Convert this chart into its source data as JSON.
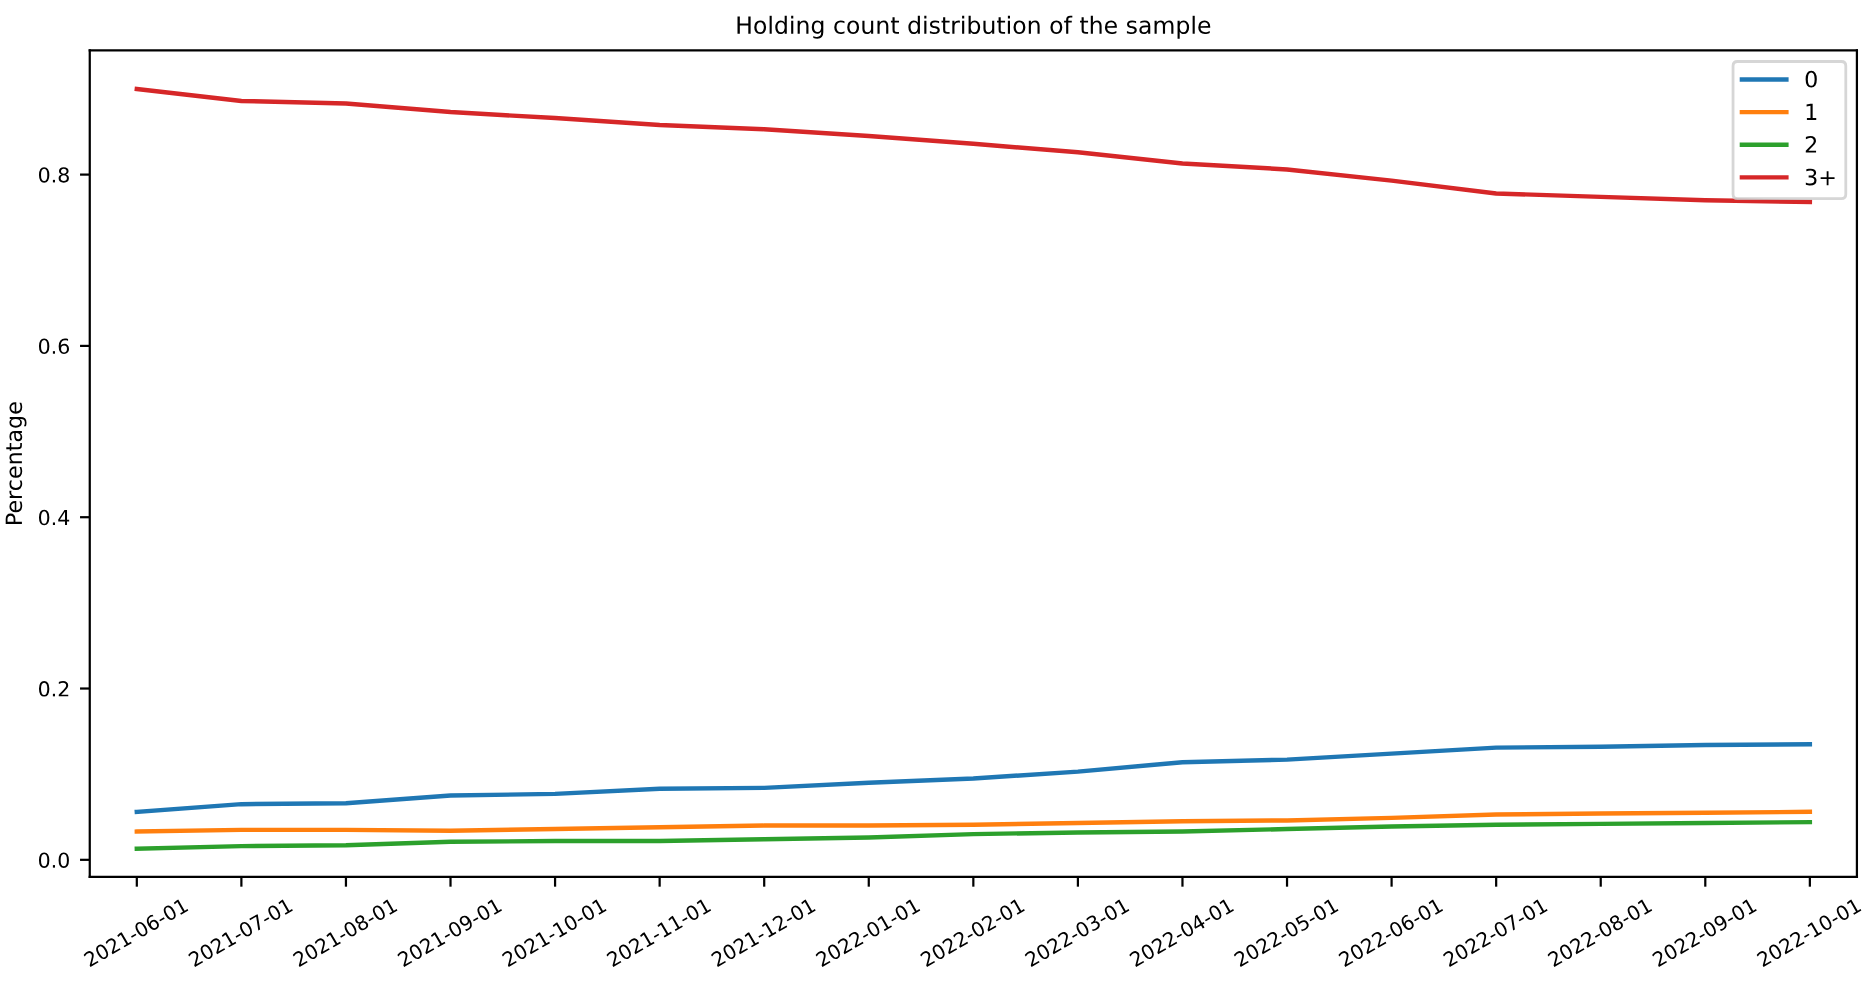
{
  "chart_data": {
    "type": "line",
    "title": "Holding count distribution of the sample",
    "ylabel": "Percentage",
    "categories": [
      "2021-06-01",
      "2021-07-01",
      "2021-08-01",
      "2021-09-01",
      "2021-10-01",
      "2021-11-01",
      "2021-12-01",
      "2022-01-01",
      "2022-02-01",
      "2022-03-01",
      "2022-04-01",
      "2022-05-01",
      "2022-06-01",
      "2022-07-01",
      "2022-08-01",
      "2022-09-01",
      "2022-10-01"
    ],
    "series": [
      {
        "name": "0",
        "color": "#1f77b4",
        "values": [
          0.056,
          0.065,
          0.066,
          0.075,
          0.077,
          0.083,
          0.084,
          0.09,
          0.095,
          0.103,
          0.114,
          0.117,
          0.124,
          0.131,
          0.132,
          0.134,
          0.135
        ]
      },
      {
        "name": "1",
        "color": "#ff7f0e",
        "values": [
          0.033,
          0.035,
          0.035,
          0.034,
          0.036,
          0.038,
          0.04,
          0.04,
          0.041,
          0.043,
          0.045,
          0.046,
          0.049,
          0.053,
          0.054,
          0.055,
          0.056
        ]
      },
      {
        "name": "2",
        "color": "#2ca02c",
        "values": [
          0.013,
          0.016,
          0.017,
          0.021,
          0.022,
          0.022,
          0.024,
          0.026,
          0.03,
          0.032,
          0.033,
          0.036,
          0.039,
          0.041,
          0.042,
          0.043,
          0.044
        ]
      },
      {
        "name": "3+",
        "color": "#d62728",
        "values": [
          0.9,
          0.886,
          0.883,
          0.873,
          0.866,
          0.858,
          0.853,
          0.845,
          0.836,
          0.826,
          0.813,
          0.806,
          0.793,
          0.778,
          0.774,
          0.77,
          0.768
        ]
      }
    ],
    "ylim": [
      -0.02,
      0.945
    ],
    "yticks": [
      {
        "value": 0,
        "label": "0.0"
      },
      {
        "value": 0.2,
        "label": "0.2"
      },
      {
        "value": 0.4,
        "label": "0.4"
      },
      {
        "value": 0.6,
        "label": "0.6"
      },
      {
        "value": 0.8,
        "label": "0.8"
      }
    ],
    "legend": "top right",
    "grid": false
  }
}
